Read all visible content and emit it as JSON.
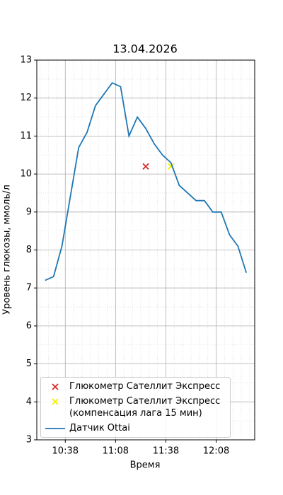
{
  "chart_data": {
    "type": "line",
    "title": "13.04.2026",
    "x_label": "Время",
    "y_label": "Уровень глюкозы, ммоль/л",
    "xlim": [
      "10:21",
      "12:31"
    ],
    "xticks": [
      "10:38",
      "11:08",
      "11:38",
      "12:08"
    ],
    "ylim": [
      3,
      13
    ],
    "yticks": [
      3,
      4,
      5,
      6,
      7,
      8,
      9,
      10,
      11,
      12,
      13
    ],
    "grid": true,
    "legend": "lower left",
    "series": [
      {
        "name": "Глюкометр Сателлит Экспресс",
        "type": "scatter",
        "marker": "x",
        "color": "#d62728",
        "x": [
          "11:26"
        ],
        "values": [
          10.2
        ]
      },
      {
        "name": "Глюкометр Сателлит Экспресс\n(компенсация лага 15 мин)",
        "type": "scatter",
        "marker": "x",
        "color": "#f2f200",
        "x": [
          "11:41"
        ],
        "values": [
          10.2
        ]
      },
      {
        "name": "Датчик Ottai",
        "type": "line",
        "color": "#1f77b4",
        "x": [
          "10:26",
          "10:31",
          "10:36",
          "10:41",
          "10:46",
          "10:51",
          "10:56",
          "11:01",
          "11:06",
          "11:11",
          "11:16",
          "11:21",
          "11:26",
          "11:31",
          "11:36",
          "11:41",
          "11:46",
          "11:51",
          "11:56",
          "12:01",
          "12:06",
          "12:11",
          "12:16",
          "12:21",
          "12:26"
        ],
        "values": [
          7.2,
          7.3,
          8.1,
          9.4,
          10.7,
          11.1,
          11.8,
          12.1,
          12.4,
          12.3,
          11.0,
          11.5,
          11.2,
          10.8,
          10.5,
          10.3,
          9.7,
          9.5,
          9.3,
          9.3,
          9.0,
          9.0,
          8.4,
          8.1,
          7.4
        ]
      }
    ]
  }
}
